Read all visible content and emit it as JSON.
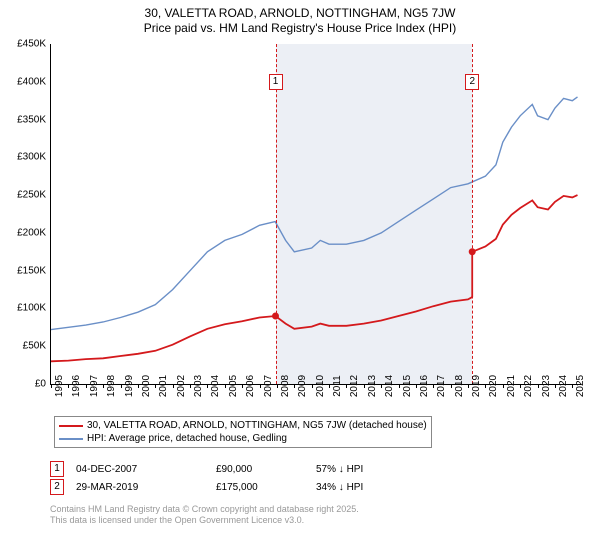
{
  "title_line1": "30, VALETTA ROAD, ARNOLD, NOTTINGHAM, NG5 7JW",
  "title_line2": "Price paid vs. HM Land Registry's House Price Index (HPI)",
  "chart": {
    "ylim": [
      0,
      450000
    ],
    "ytick_step": 50000,
    "ytick_labels": [
      "£0",
      "£50K",
      "£100K",
      "£150K",
      "£200K",
      "£250K",
      "£300K",
      "£350K",
      "£400K",
      "£450K"
    ],
    "x_years": [
      1995,
      1996,
      1997,
      1998,
      1999,
      2000,
      2001,
      2002,
      2003,
      2004,
      2005,
      2006,
      2007,
      2008,
      2009,
      2010,
      2011,
      2012,
      2013,
      2014,
      2015,
      2016,
      2017,
      2018,
      2019,
      2020,
      2021,
      2022,
      2023,
      2024,
      2025
    ],
    "x_min": 1995,
    "x_max": 2025.5,
    "shade_from": 2007.92,
    "shade_to": 2019.24,
    "background": "#ffffff",
    "grid_visible": false,
    "series": {
      "hpi": {
        "label": "HPI: Average price, detached house, Gedling",
        "color": "#6a8fc7",
        "width": 1.4,
        "points": [
          [
            1995,
            72000
          ],
          [
            1996,
            75000
          ],
          [
            1997,
            78000
          ],
          [
            1998,
            82000
          ],
          [
            1999,
            88000
          ],
          [
            2000,
            95000
          ],
          [
            2001,
            105000
          ],
          [
            2002,
            125000
          ],
          [
            2003,
            150000
          ],
          [
            2004,
            175000
          ],
          [
            2005,
            190000
          ],
          [
            2006,
            198000
          ],
          [
            2007,
            210000
          ],
          [
            2007.9,
            215000
          ],
          [
            2008.5,
            190000
          ],
          [
            2009,
            175000
          ],
          [
            2010,
            180000
          ],
          [
            2010.5,
            190000
          ],
          [
            2011,
            185000
          ],
          [
            2012,
            185000
          ],
          [
            2013,
            190000
          ],
          [
            2014,
            200000
          ],
          [
            2015,
            215000
          ],
          [
            2016,
            230000
          ],
          [
            2017,
            245000
          ],
          [
            2018,
            260000
          ],
          [
            2019,
            265000
          ],
          [
            2020,
            275000
          ],
          [
            2020.6,
            290000
          ],
          [
            2021,
            320000
          ],
          [
            2021.5,
            340000
          ],
          [
            2022,
            355000
          ],
          [
            2022.7,
            370000
          ],
          [
            2023,
            355000
          ],
          [
            2023.6,
            350000
          ],
          [
            2024,
            365000
          ],
          [
            2024.5,
            378000
          ],
          [
            2025,
            375000
          ],
          [
            2025.3,
            380000
          ]
        ]
      },
      "property": {
        "label": "30, VALETTA ROAD, ARNOLD, NOTTINGHAM, NG5 7JW (detached house)",
        "color": "#d4191c",
        "width": 1.8,
        "points": [
          [
            1995,
            30000
          ],
          [
            1996,
            31000
          ],
          [
            1997,
            33000
          ],
          [
            1998,
            34000
          ],
          [
            1999,
            37000
          ],
          [
            2000,
            40000
          ],
          [
            2001,
            44000
          ],
          [
            2002,
            52000
          ],
          [
            2003,
            63000
          ],
          [
            2004,
            73000
          ],
          [
            2005,
            79000
          ],
          [
            2006,
            83000
          ],
          [
            2007,
            88000
          ],
          [
            2007.92,
            90000
          ],
          [
            2008.5,
            80000
          ],
          [
            2009,
            73000
          ],
          [
            2010,
            76000
          ],
          [
            2010.5,
            80000
          ],
          [
            2011,
            77000
          ],
          [
            2012,
            77000
          ],
          [
            2013,
            80000
          ],
          [
            2014,
            84000
          ],
          [
            2015,
            90000
          ],
          [
            2016,
            96000
          ],
          [
            2017,
            103000
          ],
          [
            2018,
            109000
          ],
          [
            2019,
            112000
          ],
          [
            2019.24,
            115000
          ]
        ]
      },
      "property2": {
        "color": "#d4191c",
        "width": 1.8,
        "points": [
          [
            2019.24,
            175000
          ],
          [
            2020,
            182000
          ],
          [
            2020.6,
            192000
          ],
          [
            2021,
            211000
          ],
          [
            2021.5,
            224000
          ],
          [
            2022,
            233000
          ],
          [
            2022.7,
            243000
          ],
          [
            2023,
            234000
          ],
          [
            2023.6,
            231000
          ],
          [
            2024,
            241000
          ],
          [
            2024.5,
            249000
          ],
          [
            2025,
            247000
          ],
          [
            2025.3,
            250000
          ]
        ]
      }
    },
    "markers": [
      {
        "n": "1",
        "x": 2007.92,
        "y": 90000,
        "label_y": 410000,
        "color": "#d4191c"
      },
      {
        "n": "2",
        "x": 2019.24,
        "y": 175000,
        "label_y": 410000,
        "color": "#d4191c"
      }
    ]
  },
  "legend": [
    {
      "color": "#d4191c",
      "label": "30, VALETTA ROAD, ARNOLD, NOTTINGHAM, NG5 7JW (detached house)"
    },
    {
      "color": "#6a8fc7",
      "label": "HPI: Average price, detached house, Gedling"
    }
  ],
  "sales": [
    {
      "n": "1",
      "color": "#d4191c",
      "date": "04-DEC-2007",
      "price": "£90,000",
      "diff": "57% ↓ HPI"
    },
    {
      "n": "2",
      "color": "#d4191c",
      "date": "29-MAR-2019",
      "price": "£175,000",
      "diff": "34% ↓ HPI"
    }
  ],
  "attribution_line1": "Contains HM Land Registry data © Crown copyright and database right 2025.",
  "attribution_line2": "This data is licensed under the Open Government Licence v3.0."
}
